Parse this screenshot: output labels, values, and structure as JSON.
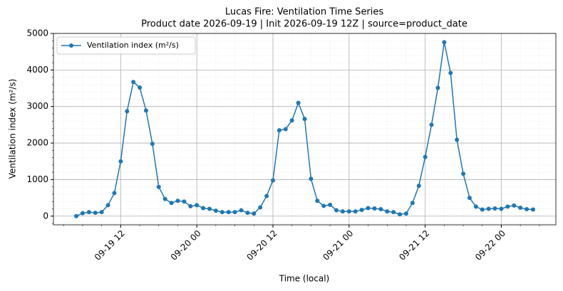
{
  "chart_data": {
    "type": "line",
    "title": "Lucas Fire: Ventilation Time Series",
    "subtitle": "Product date 2026-09-19 | Init 2026-09-19 12Z | source=product_date",
    "x_label": "Time (local)",
    "y_label": "Ventilation index (m²/s)",
    "x": [
      "09-19 05",
      "09-19 06",
      "09-19 07",
      "09-19 08",
      "09-19 09",
      "09-19 10",
      "09-19 11",
      "09-19 12",
      "09-19 13",
      "09-19 14",
      "09-19 15",
      "09-19 16",
      "09-19 17",
      "09-19 18",
      "09-19 19",
      "09-19 20",
      "09-19 21",
      "09-19 22",
      "09-19 23",
      "09-20 00",
      "09-20 01",
      "09-20 02",
      "09-20 03",
      "09-20 04",
      "09-20 05",
      "09-20 06",
      "09-20 07",
      "09-20 08",
      "09-20 09",
      "09-20 10",
      "09-20 11",
      "09-20 12",
      "09-20 13",
      "09-20 14",
      "09-20 15",
      "09-20 16",
      "09-20 17",
      "09-20 18",
      "09-20 19",
      "09-20 20",
      "09-20 21",
      "09-20 22",
      "09-20 23",
      "09-21 00",
      "09-21 01",
      "09-21 02",
      "09-21 03",
      "09-21 04",
      "09-21 05",
      "09-21 06",
      "09-21 07",
      "09-21 08",
      "09-21 09",
      "09-21 10",
      "09-21 11",
      "09-21 12",
      "09-21 13",
      "09-21 14",
      "09-21 15",
      "09-21 16",
      "09-21 17",
      "09-21 18",
      "09-21 19",
      "09-21 20",
      "09-21 21",
      "09-21 22",
      "09-21 23",
      "09-22 00",
      "09-22 01",
      "09-22 02",
      "09-22 03",
      "09-22 04",
      "09-22 05"
    ],
    "series": [
      {
        "name": "Ventilation index (m²/s)",
        "color": "#1f77b4",
        "values": [
          0,
          80,
          110,
          90,
          110,
          300,
          630,
          1500,
          2870,
          3670,
          3520,
          2890,
          1980,
          800,
          470,
          360,
          420,
          400,
          270,
          300,
          220,
          200,
          150,
          110,
          110,
          110,
          160,
          90,
          70,
          240,
          550,
          980,
          2350,
          2380,
          2620,
          3100,
          2660,
          1020,
          420,
          280,
          310,
          160,
          130,
          130,
          130,
          170,
          220,
          210,
          190,
          130,
          110,
          50,
          70,
          360,
          830,
          1620,
          2500,
          3510,
          4760,
          3920,
          2090,
          1160,
          500,
          260,
          180,
          200,
          210,
          200,
          260,
          290,
          230,
          190,
          180
        ]
      }
    ],
    "xticks": [
      "09-19 12",
      "09-20 00",
      "09-20 12",
      "09-21 00",
      "09-21 12",
      "09-22 00"
    ],
    "ylim": [
      -238,
      5000
    ],
    "yticks": [
      0,
      1000,
      2000,
      3000,
      4000,
      5000
    ],
    "grid": true,
    "legend": "upper left"
  }
}
